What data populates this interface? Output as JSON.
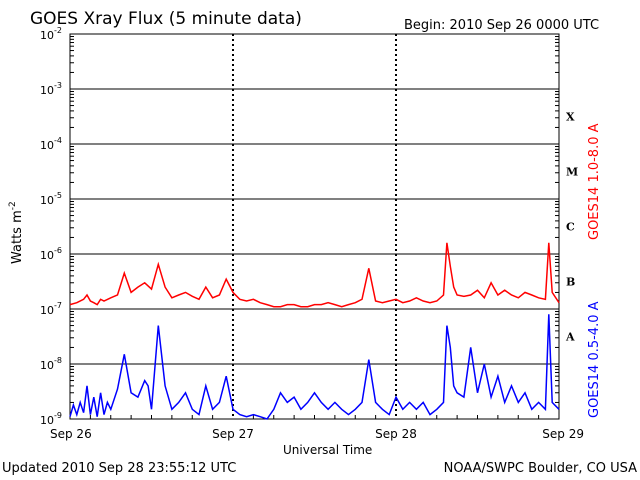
{
  "chart_data": {
    "type": "line",
    "title": "GOES Xray Flux (5 minute data)",
    "begin_label": "Begin:  2010 Sep 26 0000 UTC",
    "xlabel": "Universal Time",
    "ylabel": "Watts m",
    "ylabel_sup": "-2",
    "yscale": "log",
    "ylim": [
      1e-09,
      0.01
    ],
    "xlim": [
      0,
      72
    ],
    "x_unit": "hours since 2010 Sep 26 0000 UTC",
    "x_ticks": [
      {
        "x": 0,
        "label": "Sep 26"
      },
      {
        "x": 24,
        "label": "Sep 27"
      },
      {
        "x": 48,
        "label": "Sep 28"
      },
      {
        "x": 72,
        "label": "Sep 29"
      }
    ],
    "y_ticks": [
      {
        "exp": -9,
        "label": "10",
        "sup": "-9"
      },
      {
        "exp": -8,
        "label": "10",
        "sup": "-8"
      },
      {
        "exp": -7,
        "label": "10",
        "sup": "-7"
      },
      {
        "exp": -6,
        "label": "10",
        "sup": "-6"
      },
      {
        "exp": -5,
        "label": "10",
        "sup": "-5"
      },
      {
        "exp": -4,
        "label": "10",
        "sup": "-4"
      },
      {
        "exp": -3,
        "label": "10",
        "sup": "-3"
      },
      {
        "exp": -2,
        "label": "10",
        "sup": "-2"
      }
    ],
    "flare_classes": [
      {
        "label": "X",
        "exp": -4
      },
      {
        "label": "M",
        "exp": -5
      },
      {
        "label": "C",
        "exp": -6
      },
      {
        "label": "B",
        "exp": -7
      },
      {
        "label": "A",
        "exp": -8
      }
    ],
    "grid": true,
    "series": [
      {
        "name": "GOES14 1.0-8.0 A",
        "color": "#ff0000",
        "x": [
          0,
          1,
          2,
          2.5,
          3,
          3.5,
          4,
          4.5,
          5,
          6,
          7,
          8,
          9,
          10,
          11,
          12,
          13,
          14,
          15,
          16,
          17,
          18,
          19,
          20,
          21,
          22,
          23,
          24,
          25,
          26,
          27,
          28,
          29,
          30,
          31,
          32,
          33,
          34,
          35,
          36,
          37,
          38,
          39,
          40,
          41,
          42,
          43,
          44,
          45,
          46,
          47,
          48,
          49,
          50,
          51,
          52,
          53,
          54,
          55,
          55.5,
          56,
          56.5,
          57,
          58,
          59,
          60,
          61,
          62,
          63,
          64,
          65,
          66,
          67,
          68,
          69,
          70,
          70.5,
          71,
          72
        ],
        "y": [
          1.2e-07,
          1.3e-07,
          1.5e-07,
          1.8e-07,
          1.4e-07,
          1.3e-07,
          1.2e-07,
          1.5e-07,
          1.4e-07,
          1.6e-07,
          1.8e-07,
          4.5e-07,
          2e-07,
          2.5e-07,
          3e-07,
          2.3e-07,
          6.5e-07,
          2.5e-07,
          1.6e-07,
          1.8e-07,
          2e-07,
          1.7e-07,
          1.5e-07,
          2.5e-07,
          1.6e-07,
          1.8e-07,
          3.5e-07,
          2e-07,
          1.5e-07,
          1.4e-07,
          1.5e-07,
          1.3e-07,
          1.2e-07,
          1.1e-07,
          1.1e-07,
          1.2e-07,
          1.2e-07,
          1.1e-07,
          1.1e-07,
          1.2e-07,
          1.2e-07,
          1.3e-07,
          1.2e-07,
          1.1e-07,
          1.2e-07,
          1.3e-07,
          1.5e-07,
          5.5e-07,
          1.4e-07,
          1.3e-07,
          1.4e-07,
          1.5e-07,
          1.3e-07,
          1.4e-07,
          1.6e-07,
          1.4e-07,
          1.3e-07,
          1.4e-07,
          1.8e-07,
          1.6e-06,
          6e-07,
          2.5e-07,
          1.8e-07,
          1.7e-07,
          1.8e-07,
          2.2e-07,
          1.6e-07,
          3e-07,
          1.8e-07,
          2.2e-07,
          1.8e-07,
          1.6e-07,
          2e-07,
          1.8e-07,
          1.6e-07,
          1.5e-07,
          1.6e-06,
          2e-07,
          1.3e-07
        ]
      },
      {
        "name": "GOES14 0.5-4.0 A",
        "color": "#0000ff",
        "x": [
          0,
          0.5,
          1,
          1.5,
          2,
          2.5,
          3,
          3.5,
          4,
          4.5,
          5,
          5.5,
          6,
          7,
          8,
          9,
          10,
          11,
          11.5,
          12,
          13,
          14,
          15,
          16,
          17,
          18,
          19,
          20,
          21,
          22,
          23,
          24,
          25,
          26,
          27,
          28,
          29,
          30,
          31,
          32,
          33,
          34,
          35,
          36,
          37,
          38,
          39,
          40,
          41,
          42,
          43,
          44,
          45,
          46,
          47,
          48,
          49,
          50,
          51,
          52,
          53,
          54,
          55,
          55.5,
          56,
          56.5,
          57,
          58,
          59,
          60,
          61,
          62,
          63,
          64,
          65,
          66,
          67,
          68,
          69,
          70,
          70.5,
          71,
          72
        ],
        "y": [
          1.1e-09,
          1.8e-09,
          1.2e-09,
          2e-09,
          1.3e-09,
          4e-09,
          1.2e-09,
          2.5e-09,
          1.1e-09,
          3e-09,
          1.2e-09,
          2e-09,
          1.5e-09,
          3.5e-09,
          1.5e-08,
          3e-09,
          2.5e-09,
          5e-09,
          4e-09,
          1.5e-09,
          5e-08,
          4e-09,
          1.5e-09,
          2e-09,
          3e-09,
          1.5e-09,
          1.2e-09,
          4e-09,
          1.5e-09,
          2e-09,
          6e-09,
          1.5e-09,
          1.2e-09,
          1.1e-09,
          1.2e-09,
          1.1e-09,
          1e-09,
          1.5e-09,
          3e-09,
          2e-09,
          2.5e-09,
          1.5e-09,
          2e-09,
          3e-09,
          2e-09,
          1.5e-09,
          2e-09,
          1.5e-09,
          1.2e-09,
          1.5e-09,
          2e-09,
          1.2e-08,
          2e-09,
          1.5e-09,
          1.2e-09,
          2.5e-09,
          1.5e-09,
          2e-09,
          1.5e-09,
          2e-09,
          1.2e-09,
          1.5e-09,
          2e-09,
          5e-08,
          2e-08,
          4e-09,
          3e-09,
          2.5e-09,
          2e-08,
          3e-09,
          1e-08,
          2.5e-09,
          6e-09,
          2e-09,
          4e-09,
          2e-09,
          3e-09,
          1.5e-09,
          2e-09,
          1.5e-09,
          8e-08,
          2e-09,
          1.5e-09
        ]
      }
    ]
  },
  "footer": {
    "updated": "Updated 2010 Sep 28 23:55:12 UTC",
    "source": "NOAA/SWPC Boulder, CO USA"
  }
}
